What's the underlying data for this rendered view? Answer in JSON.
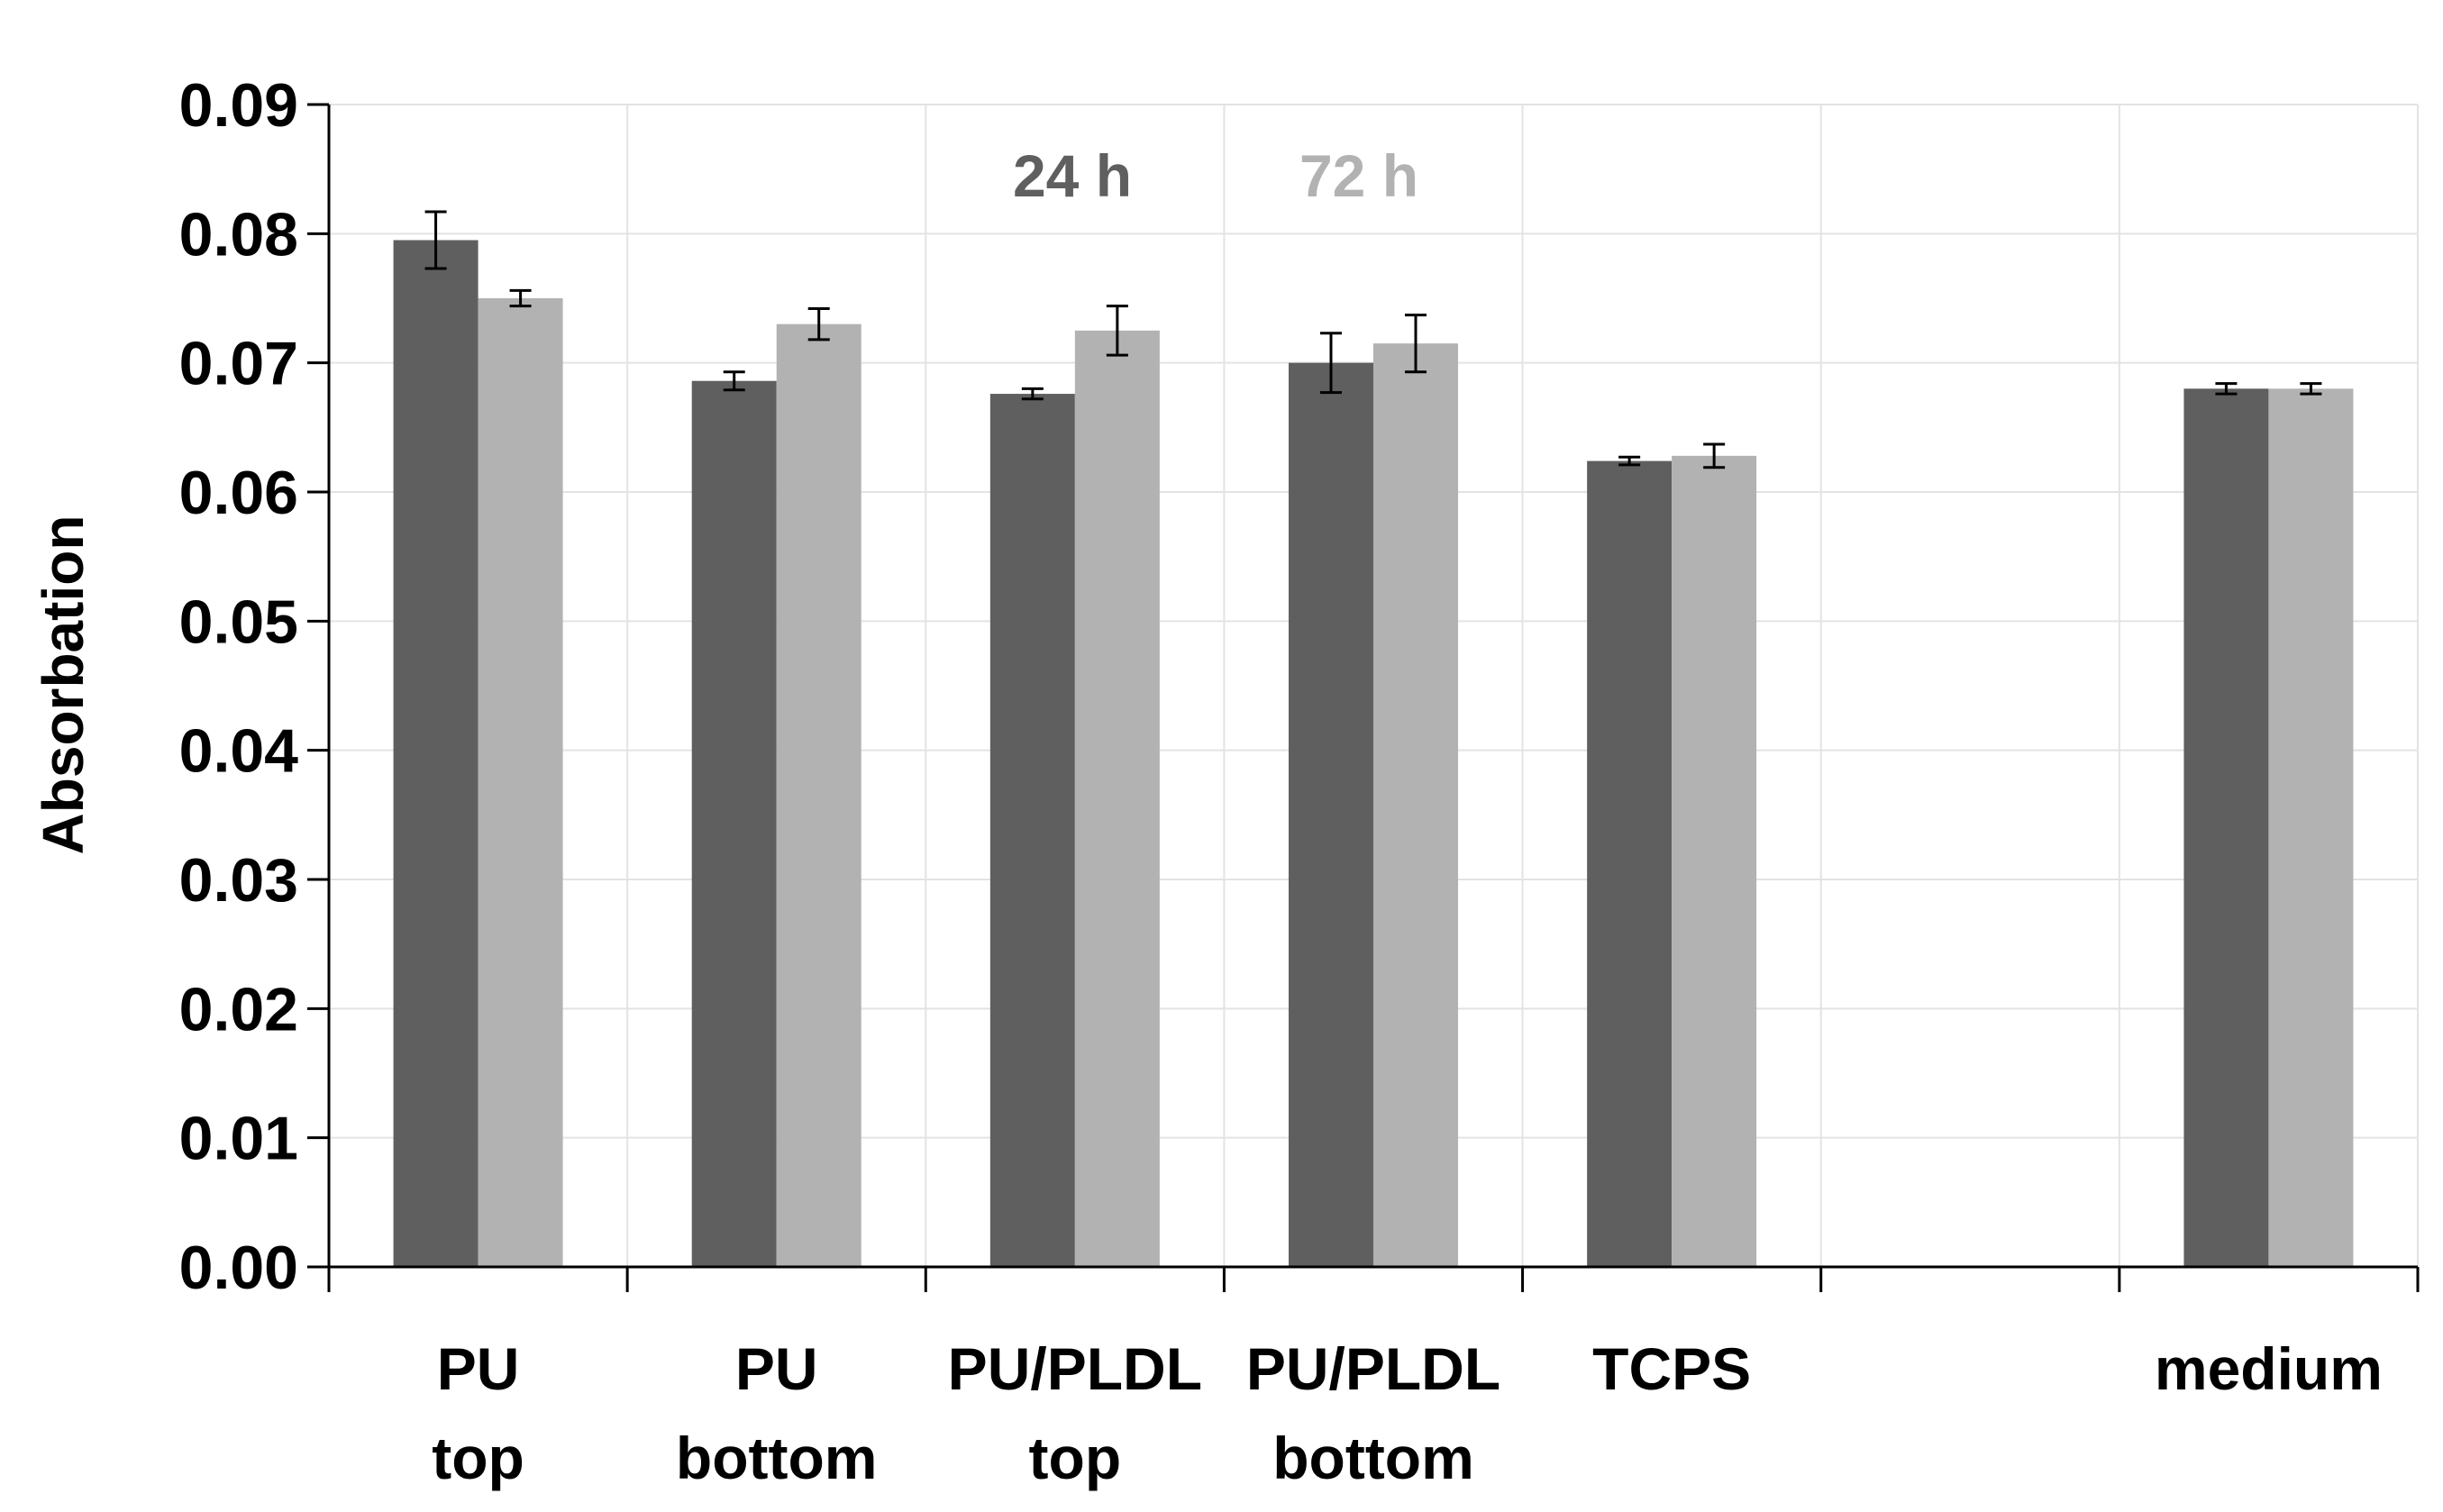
{
  "chart_data": {
    "type": "bar",
    "title": "",
    "xlabel": "",
    "ylabel": "Absorbation",
    "ylim": [
      0,
      0.09
    ],
    "yticks": [
      "0.00",
      "0.01",
      "0.02",
      "0.03",
      "0.04",
      "0.05",
      "0.06",
      "0.07",
      "0.08",
      "0.09"
    ],
    "grid": true,
    "legend_position": "top-center",
    "categories": [
      [
        "PU",
        "top"
      ],
      [
        "PU",
        "bottom"
      ],
      [
        "PU/PLDL",
        "top"
      ],
      [
        "PU/PLDL",
        "bottom"
      ],
      [
        "TCPS"
      ],
      [
        ""
      ],
      [
        "medium"
      ]
    ],
    "series": [
      {
        "name": "24 h",
        "color": "#5f5f5f",
        "values": [
          0.0795,
          0.0686,
          0.0676,
          0.07,
          0.0624,
          null,
          0.068
        ],
        "errors": [
          0.0022,
          0.0007,
          0.0004,
          0.0023,
          0.0003,
          null,
          0.0004
        ]
      },
      {
        "name": "72 h",
        "color": "#b2b2b2",
        "values": [
          0.075,
          0.073,
          0.0725,
          0.0715,
          0.0628,
          null,
          0.068
        ],
        "errors": [
          0.0006,
          0.0012,
          0.0019,
          0.0022,
          0.0009,
          null,
          0.0004
        ]
      }
    ]
  }
}
